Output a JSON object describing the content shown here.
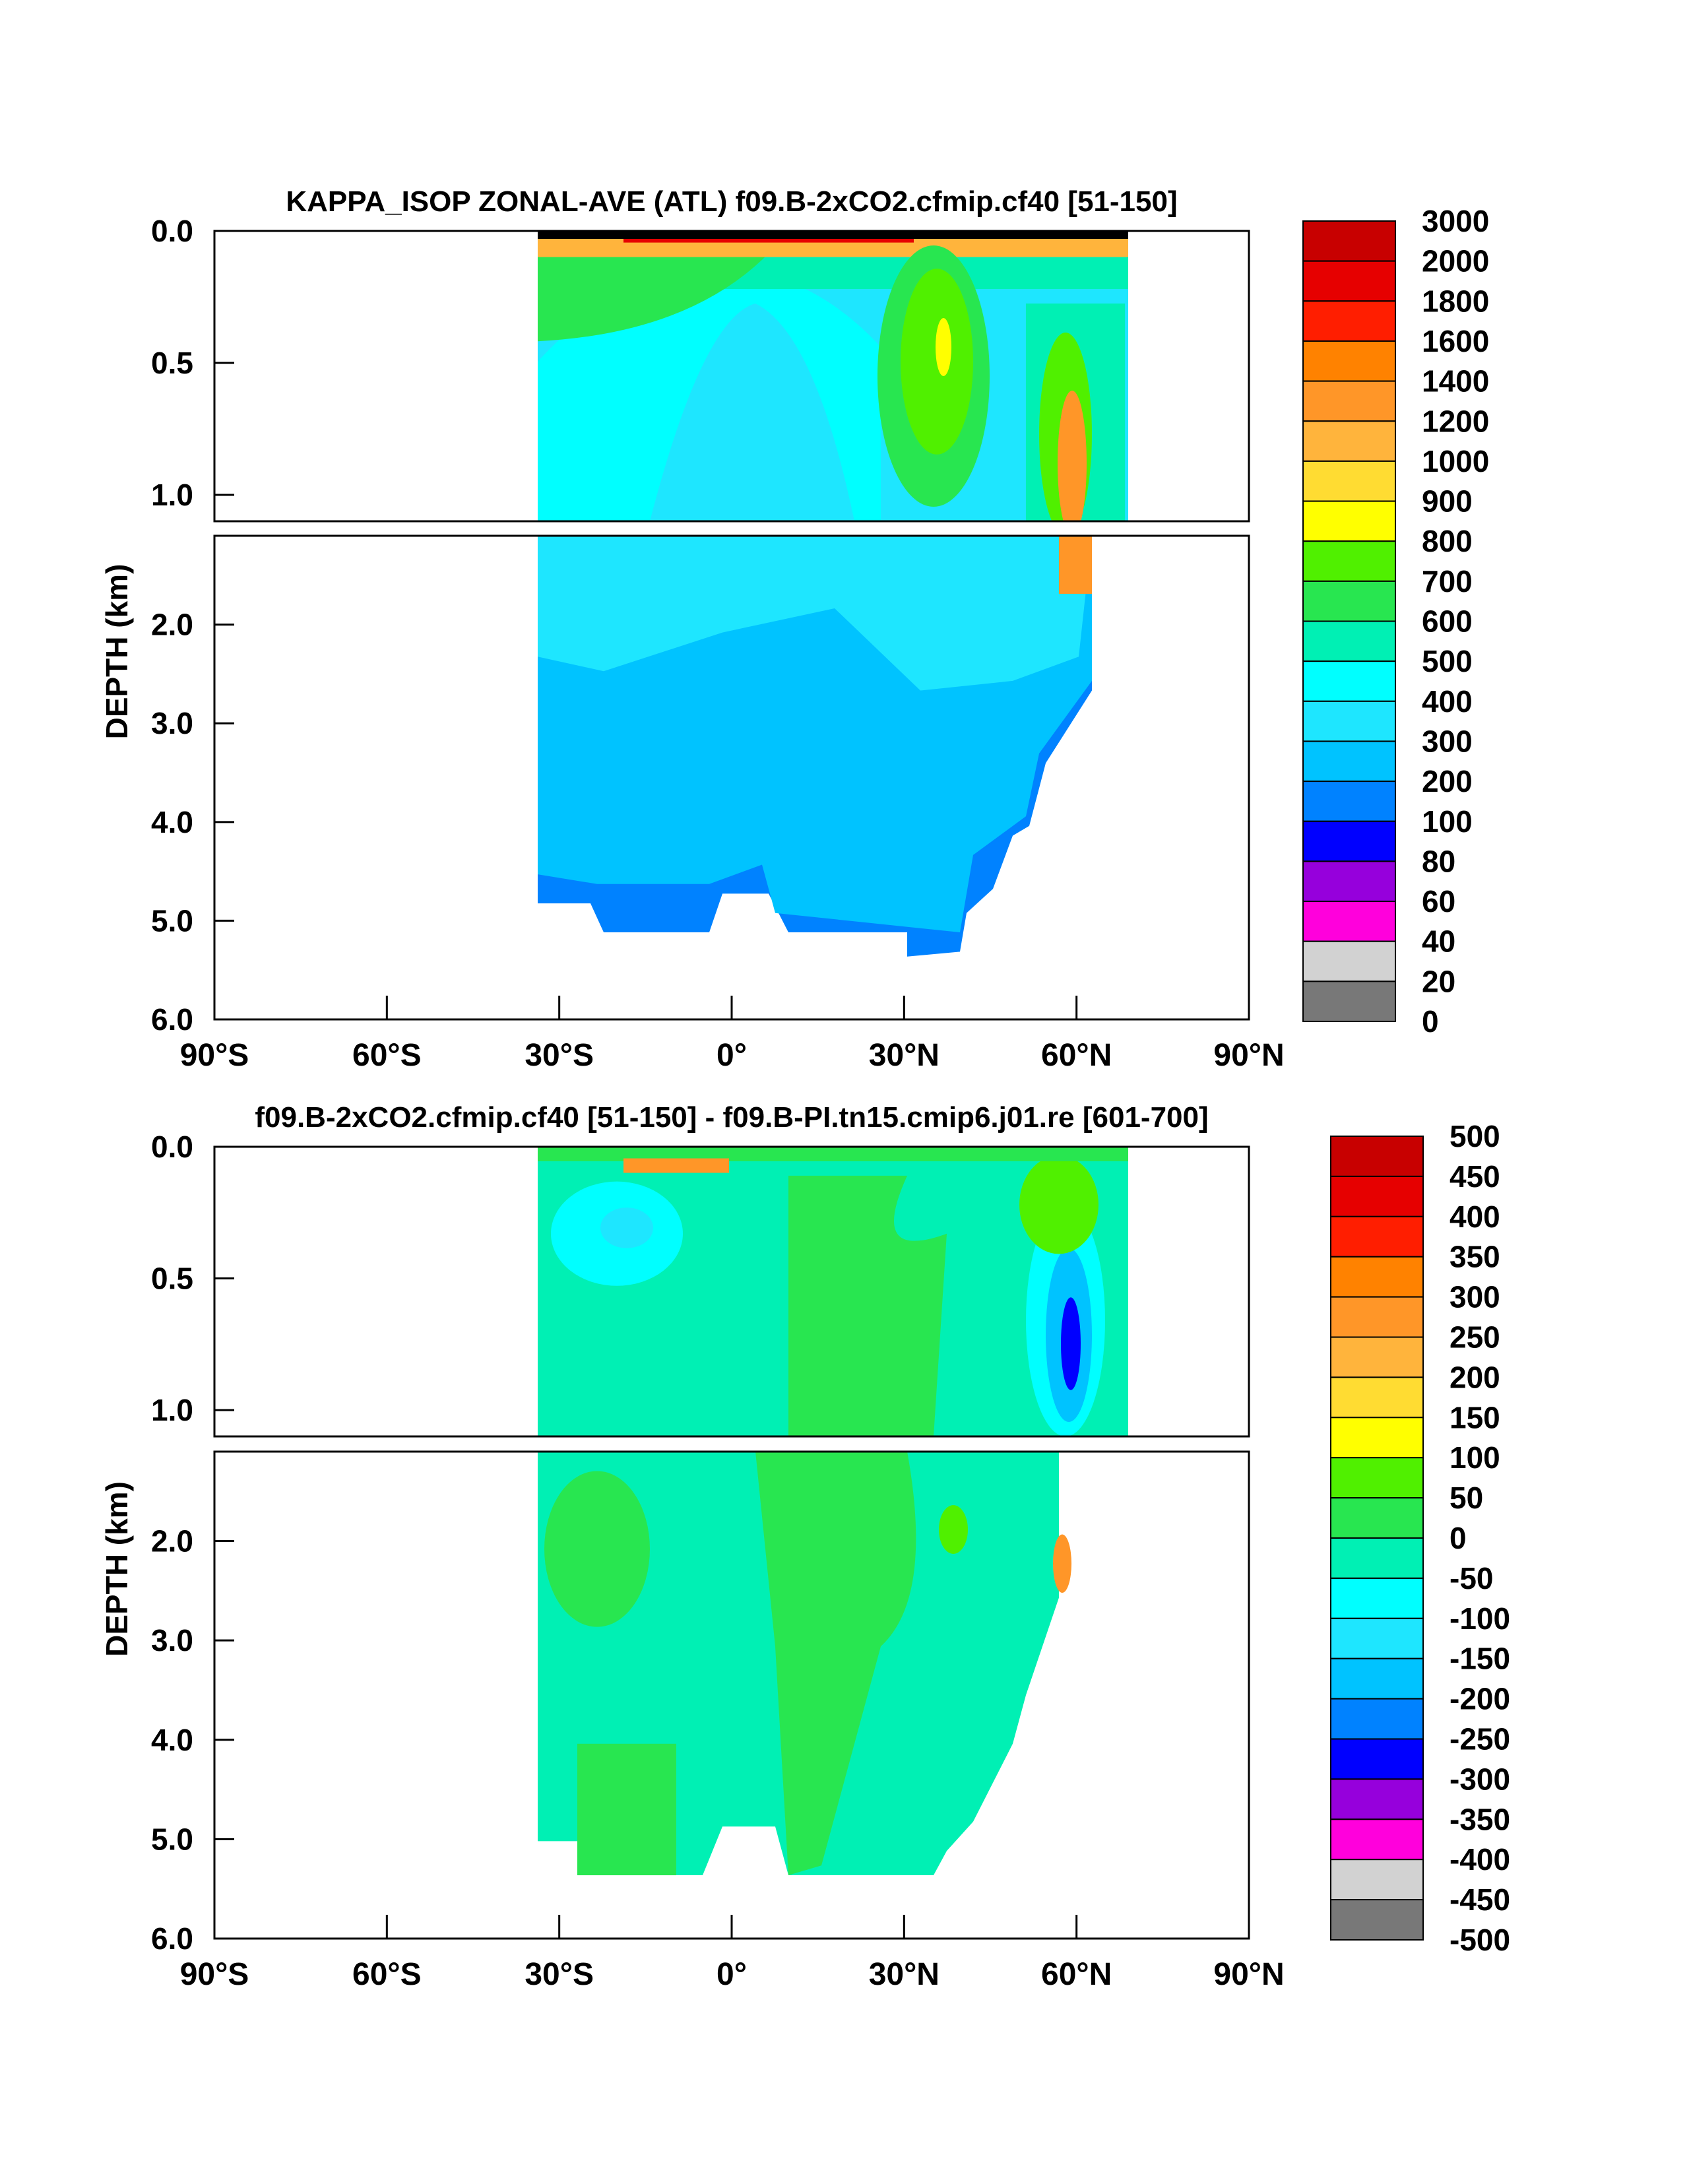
{
  "chart_data": [
    {
      "type": "heatmap",
      "title": "KAPPA_ISOP ZONAL-AVE (ATL) f09.B-2xCO2.cfmip.cf40 [51-150]",
      "xlabel": "",
      "ylabel": "DEPTH (km)",
      "x_ticks": [
        "90°S",
        "60°S",
        "30°S",
        "0°",
        "30°N",
        "60°N",
        "90°N"
      ],
      "x_range": [
        -90,
        90
      ],
      "y_ticks_upper": [
        "0.0",
        "0.5",
        "1.0"
      ],
      "y_ticks_lower": [
        "2.0",
        "3.0",
        "4.0",
        "5.0",
        "6.0"
      ],
      "y_range": [
        0,
        6
      ],
      "colorbar_levels": [
        "3000",
        "2000",
        "1800",
        "1600",
        "1400",
        "1200",
        "1000",
        "900",
        "800",
        "700",
        "600",
        "500",
        "400",
        "300",
        "200",
        "100",
        "80",
        "60",
        "40",
        "20",
        "0"
      ],
      "colorbar_colors": [
        "#c80000",
        "#e60000",
        "#ff1e00",
        "#ff8200",
        "#ff9628",
        "#ffb43c",
        "#ffdc32",
        "#ffff00",
        "#50f000",
        "#28e650",
        "#00f0b4",
        "#00ffff",
        "#1ee6ff",
        "#00c3ff",
        "#0082ff",
        "#0000ff",
        "#9600dc",
        "#ff00dc",
        "#d2d2d2",
        "#787878"
      ]
    },
    {
      "type": "heatmap",
      "title": "f09.B-2xCO2.cfmip.cf40 [51-150] - f09.B-PI.tn15.cmip6.j01.re [601-700]",
      "xlabel": "",
      "ylabel": "DEPTH (km)",
      "x_ticks": [
        "90°S",
        "60°S",
        "30°S",
        "0°",
        "30°N",
        "60°N",
        "90°N"
      ],
      "x_range": [
        -90,
        90
      ],
      "y_ticks_upper": [
        "0.0",
        "0.5",
        "1.0"
      ],
      "y_ticks_lower": [
        "2.0",
        "3.0",
        "4.0",
        "5.0",
        "6.0"
      ],
      "y_range": [
        0,
        6
      ],
      "colorbar_levels": [
        "500",
        "450",
        "400",
        "350",
        "300",
        "250",
        "200",
        "150",
        "100",
        "50",
        "0",
        "-50",
        "-100",
        "-150",
        "-200",
        "-250",
        "-300",
        "-350",
        "-400",
        "-450",
        "-500"
      ],
      "colorbar_colors": [
        "#c80000",
        "#e60000",
        "#ff1e00",
        "#ff8200",
        "#ff9628",
        "#ffb43c",
        "#ffdc32",
        "#ffff00",
        "#50f000",
        "#28e650",
        "#00f0b4",
        "#00ffff",
        "#1ee6ff",
        "#00c3ff",
        "#0082ff",
        "#0000ff",
        "#9600dc",
        "#ff00dc",
        "#d2d2d2",
        "#787878"
      ]
    }
  ]
}
